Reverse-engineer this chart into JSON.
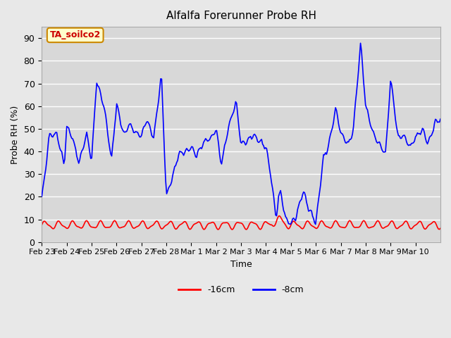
{
  "title": "Alfalfa Forerunner Probe RH",
  "xlabel": "Time",
  "ylabel": "Probe RH (%)",
  "ylim": [
    0,
    90
  ],
  "yticks": [
    0,
    10,
    20,
    30,
    40,
    50,
    60,
    70,
    80,
    90
  ],
  "background_color": "#e8e8e8",
  "plot_bg_color": "#d8d8d8",
  "grid_color": "#ffffff",
  "annotation_text": "TA_soilco2",
  "annotation_bg": "#ffffcc",
  "annotation_border": "#cc8800",
  "annotation_text_color": "#cc0000",
  "legend_labels": [
    "-16cm",
    "-8cm"
  ],
  "legend_colors": [
    "#ff0000",
    "#0000ff"
  ],
  "line_16cm_color": "#ff0000",
  "line_8cm_color": "#0000ff",
  "xtick_labels": [
    "Feb 23",
    "Feb 24",
    "Feb 25",
    "Feb 26",
    "Feb 27",
    "Feb 28",
    "Mar 1",
    "Mar 2",
    "Mar 3",
    "Mar 4",
    "Mar 5",
    "Mar 6",
    "Mar 7",
    "Mar 8",
    "Mar 9",
    "Mar 10"
  ],
  "n_points": 400
}
